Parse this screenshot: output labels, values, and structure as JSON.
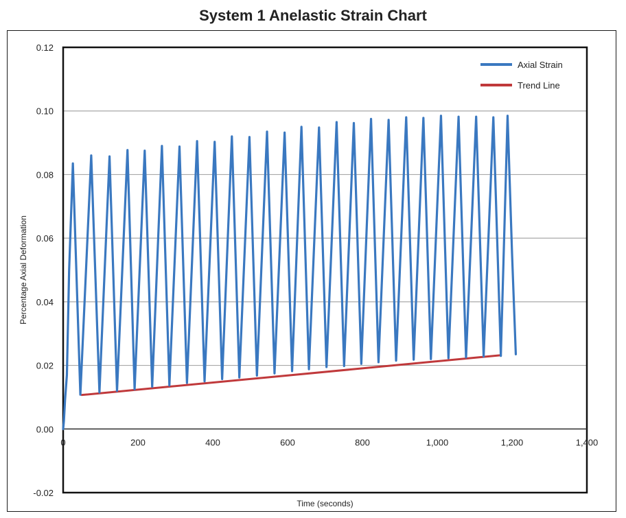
{
  "chart_data": {
    "type": "line",
    "title": "System 1 Anelastic Strain Chart",
    "xlabel": "Time (seconds)",
    "ylabel": "Percentage Axial Deformation",
    "xlim": [
      0,
      1400
    ],
    "ylim": [
      -0.02,
      0.12
    ],
    "x_ticks": [
      0,
      200,
      400,
      600,
      800,
      1000,
      1200,
      1400
    ],
    "x_tick_labels": [
      "0",
      "200",
      "400",
      "600",
      "800",
      "1,000",
      "1,200",
      "1,400"
    ],
    "y_ticks": [
      -0.02,
      0,
      0.02,
      0.04,
      0.06,
      0.08,
      0.1,
      0.12
    ],
    "y_tick_labels": [
      "-0.02",
      "0.00",
      "0.02",
      "0.04",
      "0.06",
      "0.08",
      "0.10",
      "0.12"
    ],
    "grid": "horizontal",
    "legend_position": "top-right",
    "series": [
      {
        "name": "Axial Strain",
        "color": "#3a78c0",
        "x": [
          0,
          2,
          5,
          10,
          16,
          26,
          46,
          75,
          97,
          124,
          144,
          172,
          191,
          218,
          238,
          264,
          284,
          311,
          331,
          358,
          378,
          405,
          425,
          451,
          471,
          498,
          518,
          545,
          565,
          592,
          612,
          637,
          657,
          684,
          704,
          731,
          751,
          777,
          797,
          823,
          843,
          870,
          890,
          917,
          937,
          963,
          983,
          1010,
          1030,
          1057,
          1077,
          1104,
          1124,
          1150,
          1170,
          1188,
          1200,
          1210
        ],
        "y": [
          0.0,
          0.0025,
          0.009,
          0.017,
          0.05,
          0.0835,
          0.0108,
          0.086,
          0.0115,
          0.0857,
          0.012,
          0.0877,
          0.0125,
          0.0875,
          0.0133,
          0.089,
          0.0137,
          0.0888,
          0.0145,
          0.0905,
          0.015,
          0.0903,
          0.0157,
          0.092,
          0.0162,
          0.0918,
          0.0168,
          0.0935,
          0.0175,
          0.0932,
          0.0182,
          0.095,
          0.0188,
          0.0948,
          0.0195,
          0.0965,
          0.0198,
          0.0962,
          0.0205,
          0.0975,
          0.021,
          0.0972,
          0.0215,
          0.098,
          0.0218,
          0.0978,
          0.022,
          0.0985,
          0.0223,
          0.0982,
          0.0225,
          0.0982,
          0.0228,
          0.098,
          0.023,
          0.0985,
          0.055,
          0.0235
        ]
      },
      {
        "name": "Trend Line",
        "color": "#c0393b",
        "x": [
          50,
          1170
        ],
        "y": [
          0.0107,
          0.0232
        ]
      }
    ]
  }
}
